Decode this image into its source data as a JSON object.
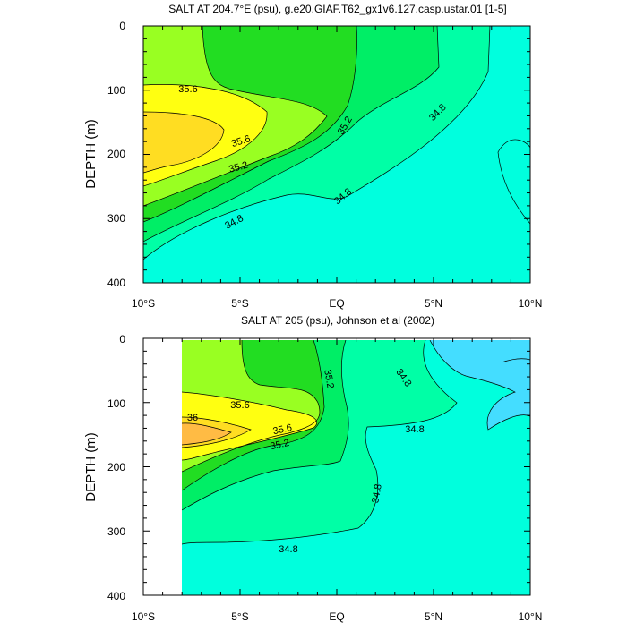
{
  "chart_data": [
    {
      "type": "contour",
      "title": "SALT AT 204.7°E (psu), g.e20.GIAF.T62_gx1v6.127.casp.ustar.01 [1-5]",
      "ylabel": "DEPTH (m)",
      "xlabel": "",
      "x_tick_labels": [
        "10°S",
        "5°S",
        "EQ",
        "5°N",
        "10°N"
      ],
      "x_tick_values": [
        -10,
        -5,
        0,
        5,
        10
      ],
      "xlim": [
        -10,
        10
      ],
      "y_tick_labels": [
        "0",
        "100",
        "200",
        "300",
        "400"
      ],
      "y_tick_values": [
        0,
        100,
        200,
        300,
        400
      ],
      "ylim": [
        400,
        0
      ],
      "contour_labels": [
        "35.6",
        "35.6",
        "35.2",
        "35.2",
        "34.8",
        "34.8",
        "34.8"
      ],
      "colors": {
        "lt_34_8": "#00ffde",
        "34_8_to_35_0": "#00ffa6",
        "35_0_to_35_2": "#00ee66",
        "35_2_to_35_4": "#22dd22",
        "35_4_to_35_6": "#99ff22",
        "35_6_to_35_8": "#ffff11",
        "35_8_to_36_0": "#ffdd22"
      }
    },
    {
      "type": "contour",
      "title": "SALT AT 205 (psu), Johnson et al (2002)",
      "ylabel": "DEPTH (m)",
      "xlabel": "",
      "x_tick_labels": [
        "10°S",
        "5°S",
        "EQ",
        "5°N",
        "10°N"
      ],
      "x_tick_values": [
        -10,
        -5,
        0,
        5,
        10
      ],
      "xlim": [
        -10,
        10
      ],
      "y_tick_labels": [
        "0",
        "100",
        "200",
        "300",
        "400"
      ],
      "y_tick_values": [
        0,
        100,
        200,
        300,
        400
      ],
      "ylim": [
        400,
        0
      ],
      "data_extent": {
        "x": [
          -8,
          10
        ],
        "y": [
          10,
          400
        ]
      },
      "contour_labels": [
        "35.6",
        "36",
        "35.6",
        "35.2",
        "35.2",
        "34.8",
        "34.8",
        "34.8",
        "34.8"
      ],
      "colors": {
        "lt_34_6": "#44ddff",
        "34_6_to_34_8": "#00ffdd",
        "34_8_to_35_0": "#00ffa6",
        "35_0_to_35_2": "#00ee66",
        "35_2_to_35_4": "#22dd22",
        "35_4_to_35_6": "#99ff22",
        "35_6_to_35_8": "#ffff11",
        "35_8_to_36_0": "#ffdd22",
        "gt_36_0": "#ffbb44"
      }
    }
  ]
}
